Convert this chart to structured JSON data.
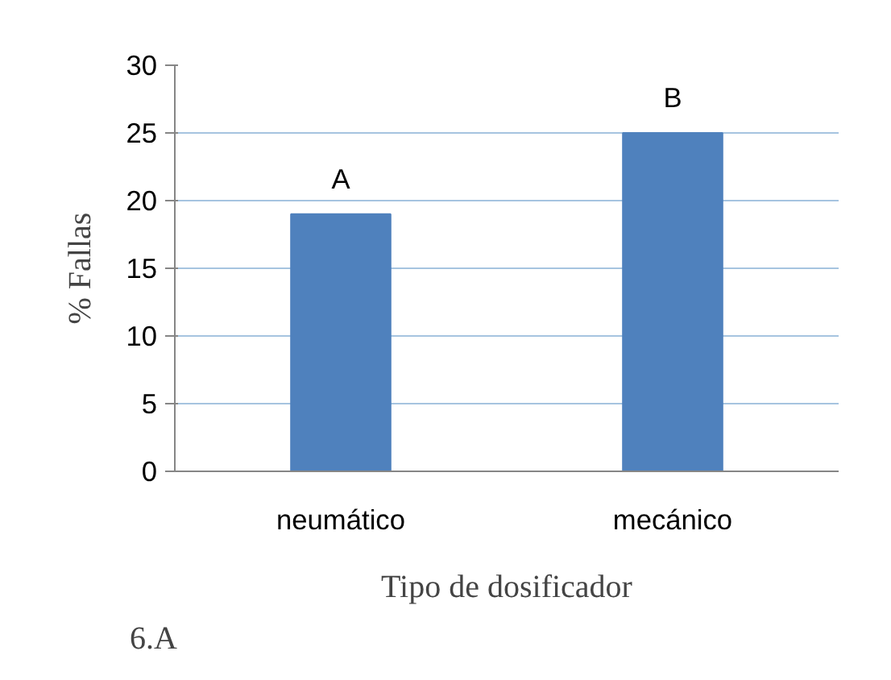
{
  "chart_data": {
    "type": "bar",
    "xlabel": "Tipo de dosificador",
    "ylabel": "% Fallas",
    "categories": [
      "neumático",
      "mecánico"
    ],
    "values": [
      19,
      25
    ],
    "color": "#4f81bd",
    "ylim": [
      0,
      30
    ],
    "yticks": [
      0,
      5,
      10,
      15,
      20,
      25,
      30
    ],
    "grid": "y",
    "annotations": [
      {
        "text": "A",
        "x": "neumático",
        "y": 19
      },
      {
        "text": "B",
        "x": "mecánico",
        "y": 25
      },
      "6.A"
    ]
  }
}
